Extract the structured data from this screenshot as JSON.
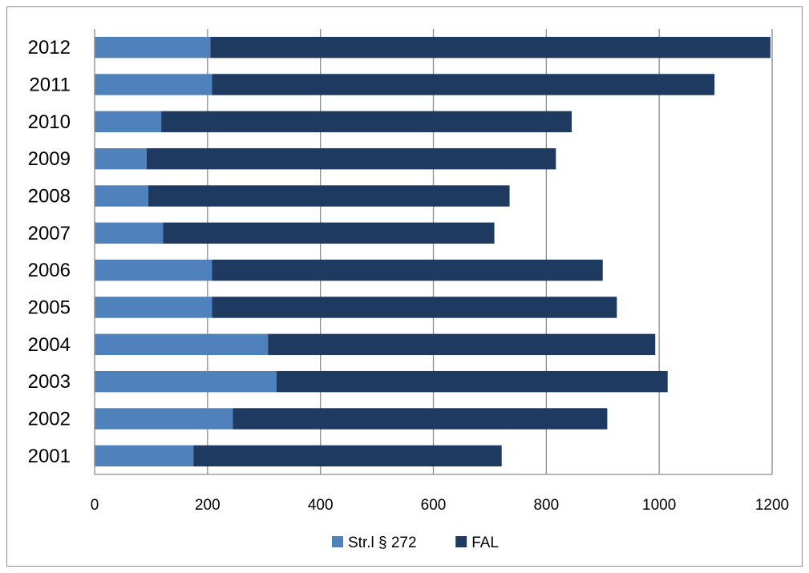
{
  "chart_data": {
    "type": "bar",
    "orientation": "horizontal",
    "stacked": true,
    "categories": [
      "2012",
      "2011",
      "2010",
      "2009",
      "2008",
      "2007",
      "2006",
      "2005",
      "2004",
      "2003",
      "2002",
      "2001"
    ],
    "series": [
      {
        "name": "Str.l § 272",
        "color": "#4f81bd",
        "values": [
          205,
          208,
          118,
          92,
          95,
          121,
          208,
          208,
          307,
          322,
          245,
          175
        ]
      },
      {
        "name": "FAL",
        "color": "#1f3a60",
        "values": [
          992,
          890,
          727,
          725,
          640,
          587,
          692,
          717,
          686,
          693,
          663,
          546
        ]
      }
    ],
    "xlim": [
      0,
      1200
    ],
    "xticks": [
      "0",
      "200",
      "400",
      "600",
      "800",
      "1000",
      "1200"
    ],
    "gridlines": "vertical",
    "legend_position": "bottom"
  }
}
